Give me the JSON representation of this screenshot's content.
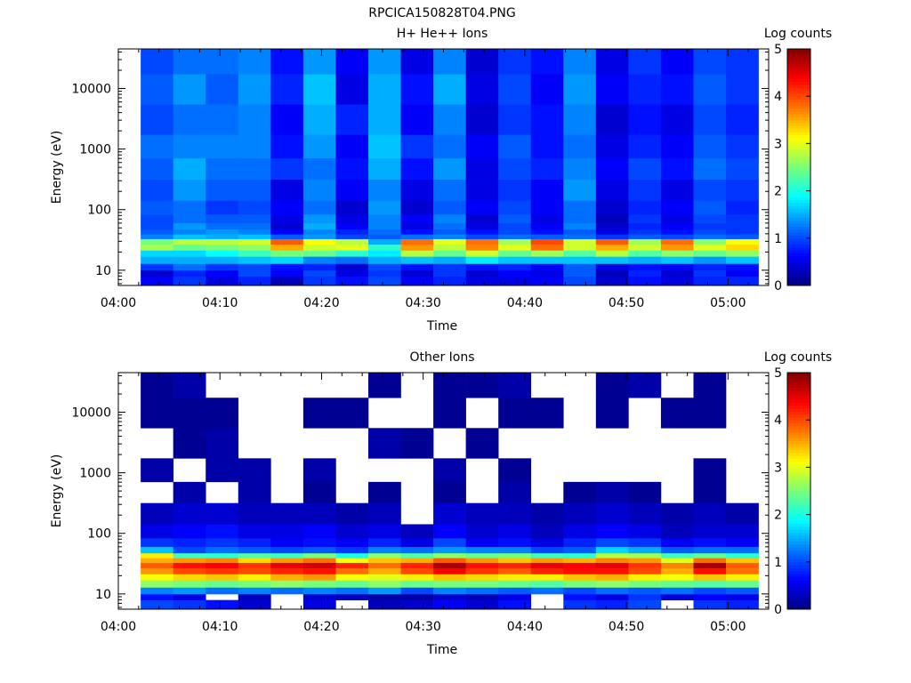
{
  "figure": {
    "filename": "RPCICA150828T04.PNG"
  },
  "colormap": [
    "#00007f",
    "#0000ff",
    "#0078ff",
    "#00ffff",
    "#78ff78",
    "#ffff00",
    "#ff7800",
    "#ff0000",
    "#7f0000"
  ],
  "chart_data": [
    {
      "type": "heatmap",
      "title": "H+ He++ Ions",
      "xlabel": "Time",
      "ylabel": "Energy (eV)",
      "colorbar_label": "Log counts",
      "colorbar_ticks": [
        "0",
        "1",
        "2",
        "3",
        "4",
        "5"
      ],
      "colorbar_range": [
        0,
        5
      ],
      "x_ticks": [
        "04:00",
        "04:10",
        "04:20",
        "04:30",
        "04:40",
        "04:50",
        "05:00"
      ],
      "y_ticks": [
        "10",
        "100",
        "1000",
        "10000"
      ],
      "y_scale": "log",
      "ylim": [
        5.6,
        45000
      ],
      "xlim_minutes": [
        0,
        64
      ],
      "time_bins_start_min": [
        2.2,
        5.4,
        8.6,
        11.8,
        15.0,
        18.2,
        21.4,
        24.6,
        27.8,
        31.0,
        34.2,
        37.4,
        40.6,
        43.8,
        47.0,
        50.2,
        53.4,
        56.6,
        59.8
      ],
      "time_bin_width_min": 3.2,
      "energy_profile": {
        "energies_eV": [
          7,
          9,
          11,
          15,
          19,
          24,
          30,
          36,
          43,
          52,
          70,
          100,
          200,
          500,
          1000,
          3000,
          10000,
          30000
        ],
        "log_counts_per_bin": [
          [
            0.6,
            0.4,
            0.9,
            1.5,
            1.7,
            2.7,
            2.5,
            1.3,
            1.1,
            1.0,
            1.0,
            1.1,
            1.0,
            1.1,
            1.2,
            1.0,
            1.1,
            1.0
          ],
          [
            0.9,
            0.8,
            1.2,
            1.5,
            1.7,
            2.4,
            2.8,
            1.6,
            1.3,
            1.4,
            1.2,
            1.2,
            1.4,
            1.5,
            1.3,
            1.2,
            1.4,
            1.2
          ],
          [
            0.5,
            0.6,
            0.9,
            1.5,
            1.9,
            2.5,
            2.8,
            1.5,
            1.4,
            1.2,
            1.1,
            0.9,
            1.1,
            1.2,
            1.3,
            1.2,
            1.1,
            1.2
          ],
          [
            0.8,
            1.0,
            1.0,
            1.6,
            2.2,
            2.6,
            2.9,
            1.6,
            1.3,
            1.2,
            1.1,
            1.0,
            1.1,
            1.2,
            1.3,
            1.3,
            1.4,
            1.3
          ],
          [
            0.3,
            0.6,
            0.7,
            1.7,
            2.5,
            3.5,
            3.9,
            1.1,
            0.6,
            0.4,
            0.5,
            0.6,
            0.5,
            0.9,
            0.7,
            0.6,
            0.8,
            0.7
          ],
          [
            0.9,
            1.0,
            0.8,
            1.3,
            2.4,
            2.9,
            3.1,
            1.4,
            1.3,
            1.5,
            1.4,
            1.2,
            1.3,
            1.2,
            1.4,
            1.5,
            1.6,
            1.4
          ],
          [
            0.7,
            0.5,
            0.4,
            1.2,
            2.1,
            3.0,
            2.8,
            1.0,
            0.8,
            0.6,
            0.5,
            0.4,
            0.6,
            0.7,
            0.6,
            0.8,
            0.5,
            0.6
          ],
          [
            1.0,
            0.9,
            1.0,
            1.5,
            1.8,
            2.1,
            1.5,
            1.1,
            1.2,
            1.3,
            1.3,
            1.4,
            1.3,
            1.5,
            1.6,
            1.5,
            1.5,
            1.4
          ],
          [
            0.6,
            0.4,
            0.7,
            1.6,
            2.8,
            3.6,
            3.8,
            1.2,
            0.7,
            0.5,
            0.6,
            0.4,
            0.5,
            0.7,
            0.9,
            0.6,
            0.7,
            0.5
          ],
          [
            0.8,
            0.9,
            0.9,
            1.5,
            2.4,
            2.8,
            3.0,
            1.3,
            1.1,
            1.2,
            1.3,
            1.1,
            1.2,
            1.4,
            1.2,
            1.3,
            1.5,
            1.3
          ],
          [
            0.5,
            0.4,
            0.7,
            1.8,
            2.9,
            3.7,
            3.8,
            1.0,
            0.7,
            0.5,
            0.4,
            0.6,
            0.5,
            0.5,
            0.6,
            0.4,
            0.5,
            0.4
          ],
          [
            0.5,
            0.6,
            0.8,
            1.6,
            2.4,
            3.0,
            2.7,
            1.2,
            1.0,
            1.0,
            1.1,
            1.0,
            0.9,
            1.0,
            1.1,
            0.9,
            1.0,
            0.9
          ],
          [
            0.6,
            0.5,
            0.6,
            1.6,
            2.7,
            3.8,
            4.0,
            1.1,
            0.7,
            0.6,
            0.5,
            0.6,
            0.6,
            0.8,
            0.7,
            0.7,
            0.6,
            0.7
          ],
          [
            1.0,
            1.1,
            1.1,
            1.6,
            2.3,
            2.9,
            2.9,
            1.2,
            1.1,
            1.3,
            1.2,
            1.2,
            1.4,
            1.3,
            1.2,
            1.3,
            1.4,
            1.3
          ],
          [
            0.4,
            0.3,
            0.5,
            1.6,
            2.8,
            3.5,
            3.9,
            0.9,
            0.5,
            0.4,
            0.3,
            0.4,
            0.5,
            0.6,
            0.5,
            0.4,
            0.6,
            0.5
          ],
          [
            0.7,
            0.8,
            0.7,
            1.5,
            2.3,
            2.9,
            2.7,
            1.1,
            0.9,
            0.8,
            0.9,
            0.8,
            0.9,
            1.0,
            0.8,
            0.7,
            0.8,
            0.9
          ],
          [
            0.5,
            0.4,
            0.6,
            1.6,
            2.6,
            3.6,
            3.8,
            1.0,
            0.7,
            0.6,
            0.5,
            0.6,
            0.5,
            0.7,
            0.6,
            0.5,
            0.7,
            0.6
          ],
          [
            0.8,
            0.9,
            0.8,
            1.4,
            2.4,
            3.0,
            2.6,
            1.2,
            1.0,
            0.9,
            1.0,
            1.1,
            1.0,
            1.2,
            1.1,
            1.0,
            1.1,
            1.0
          ],
          [
            0.8,
            0.6,
            0.7,
            1.6,
            2.6,
            3.3,
            3.1,
            1.1,
            0.9,
            0.9,
            0.9,
            0.8,
            0.9,
            1.0,
            0.9,
            0.8,
            0.9,
            0.9
          ]
        ]
      }
    },
    {
      "type": "heatmap",
      "title": "Other Ions",
      "xlabel": "Time",
      "ylabel": "Energy (eV)",
      "colorbar_label": "Log counts",
      "colorbar_ticks": [
        "0",
        "1",
        "2",
        "3",
        "4",
        "5"
      ],
      "colorbar_range": [
        0,
        5
      ],
      "x_ticks": [
        "04:00",
        "04:10",
        "04:20",
        "04:30",
        "04:40",
        "04:50",
        "05:00"
      ],
      "y_ticks": [
        "10",
        "100",
        "1000",
        "10000"
      ],
      "y_scale": "log",
      "ylim": [
        5.6,
        45000
      ],
      "xlim_minutes": [
        0,
        64
      ],
      "time_bins_start_min": [
        2.2,
        5.4,
        8.6,
        11.8,
        15.0,
        18.2,
        21.4,
        24.6,
        27.8,
        31.0,
        34.2,
        37.4,
        40.6,
        43.8,
        47.0,
        50.2,
        53.4,
        56.6,
        59.8
      ],
      "time_bin_width_min": 3.2,
      "energy_profile": {
        "energies_eV": [
          7,
          9,
          11,
          15,
          19,
          24,
          30,
          36,
          43,
          52,
          70,
          100,
          200,
          500,
          1000,
          3000,
          10000,
          30000
        ],
        "log_counts_per_bin": [
          [
            1.0,
            0.7,
            1.3,
            2.6,
            3.1,
            3.6,
            3.9,
            3.5,
            3.2,
            1.6,
            0.9,
            0.5,
            0.3,
            null,
            0.2,
            null,
            0.1,
            0.1
          ],
          [
            0.9,
            0.5,
            1.4,
            2.5,
            3.3,
            4.0,
            4.3,
            3.6,
            2.2,
            1.0,
            0.8,
            0.6,
            0.4,
            0.2,
            null,
            0.1,
            0.1,
            0.2
          ],
          [
            0.7,
            null,
            1.2,
            2.4,
            3.4,
            4.1,
            4.4,
            3.7,
            2.1,
            1.2,
            0.9,
            0.7,
            0.4,
            null,
            0.2,
            0.2,
            0.1,
            null
          ],
          [
            0.4,
            0.3,
            1.3,
            2.5,
            3.2,
            4.0,
            4.1,
            3.3,
            2.3,
            1.1,
            0.8,
            0.5,
            0.3,
            0.2,
            0.2,
            null,
            null,
            null
          ],
          [
            null,
            null,
            1.2,
            2.6,
            3.5,
            4.2,
            4.5,
            3.6,
            2.2,
            1.0,
            0.6,
            0.5,
            0.3,
            null,
            null,
            null,
            null,
            null
          ],
          [
            0.5,
            0.4,
            1.3,
            2.5,
            3.6,
            4.3,
            4.6,
            3.8,
            2.5,
            1.1,
            0.7,
            0.6,
            0.3,
            0.1,
            0.2,
            null,
            0.1,
            null
          ],
          [
            null,
            0.3,
            1.2,
            2.4,
            3.1,
            3.8,
            4.2,
            3.1,
            2.0,
            0.9,
            0.6,
            0.4,
            0.2,
            null,
            null,
            null,
            0.1,
            null
          ],
          [
            0.3,
            0.2,
            1.4,
            2.6,
            3.0,
            3.5,
            3.8,
            3.4,
            2.6,
            1.3,
            0.8,
            0.5,
            0.3,
            0.1,
            null,
            0.2,
            null,
            0.1
          ],
          [
            0.4,
            0.2,
            1.0,
            2.4,
            3.2,
            4.0,
            4.2,
            3.5,
            2.3,
            1.2,
            0.5,
            0.3,
            null,
            null,
            null,
            0.1,
            null,
            null
          ],
          [
            0.6,
            0.4,
            1.3,
            2.5,
            3.4,
            4.4,
            4.8,
            3.9,
            2.6,
            1.4,
            1.0,
            0.6,
            0.4,
            0.1,
            0.2,
            null,
            0.1,
            0.1
          ],
          [
            0.4,
            0.3,
            1.2,
            2.5,
            3.3,
            4.1,
            4.3,
            3.6,
            2.4,
            1.3,
            0.6,
            0.4,
            0.3,
            null,
            null,
            0.1,
            null,
            0.1
          ],
          [
            0.7,
            0.5,
            1.1,
            2.4,
            3.2,
            3.9,
            4.2,
            3.4,
            2.5,
            1.3,
            0.7,
            0.5,
            0.3,
            0.2,
            0.1,
            null,
            0.1,
            0.2
          ],
          [
            null,
            null,
            1.2,
            2.3,
            3.2,
            4.2,
            4.5,
            3.6,
            2.2,
            1.0,
            0.5,
            0.3,
            0.2,
            null,
            null,
            null,
            0.1,
            null
          ],
          [
            0.9,
            0.7,
            1.0,
            2.5,
            3.4,
            4.3,
            4.4,
            3.5,
            2.1,
            1.1,
            0.8,
            0.5,
            0.3,
            0.1,
            null,
            null,
            null,
            null
          ],
          [
            0.8,
            0.5,
            1.2,
            2.6,
            3.5,
            4.3,
            4.5,
            3.7,
            2.8,
            1.7,
            1.0,
            0.6,
            0.4,
            0.2,
            null,
            null,
            0.1,
            0.1
          ],
          [
            1.0,
            0.9,
            1.1,
            2.5,
            3.2,
            4.0,
            4.1,
            3.6,
            2.7,
            1.5,
            0.9,
            0.5,
            0.3,
            0.1,
            null,
            null,
            null,
            0.2
          ],
          [
            null,
            0.4,
            1.2,
            2.4,
            3.1,
            3.5,
            3.7,
            3.0,
            2.2,
            1.1,
            0.6,
            0.3,
            0.2,
            null,
            null,
            null,
            0.1,
            null
          ],
          [
            0.9,
            0.6,
            1.0,
            2.3,
            3.4,
            4.3,
            4.8,
            3.8,
            2.4,
            1.2,
            0.7,
            0.4,
            0.3,
            0.1,
            0.1,
            null,
            0.1,
            0.1
          ],
          [
            0.8,
            0.5,
            1.1,
            2.4,
            3.2,
            3.8,
            3.9,
            3.4,
            2.1,
            1.2,
            0.6,
            0.4,
            0.2,
            null,
            null,
            null,
            null,
            null
          ]
        ]
      }
    }
  ]
}
